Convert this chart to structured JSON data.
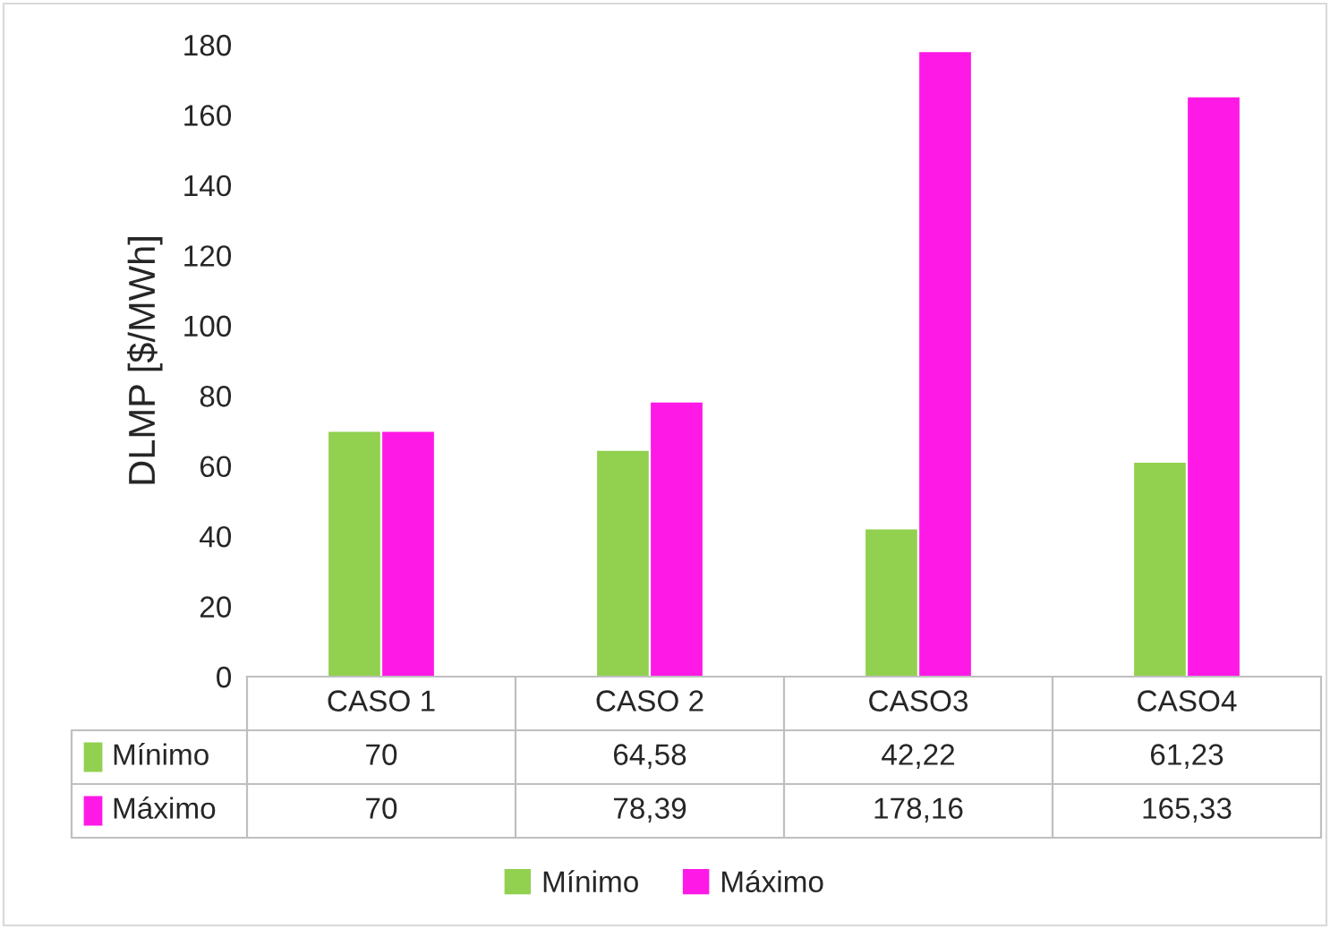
{
  "chart_data": {
    "type": "bar",
    "ylabel": "DLMP [$/MWh]",
    "categories": [
      "CASO 1",
      "CASO 2",
      "CASO3",
      "CASO4"
    ],
    "series": [
      {
        "name": "Mínimo",
        "color": "#92d050",
        "values": [
          70,
          64.58,
          42.22,
          61.23
        ],
        "value_labels": [
          "70",
          "64,58",
          "42,22",
          "61,23"
        ]
      },
      {
        "name": "Máximo",
        "color": "#ff19e6",
        "values": [
          70,
          78.39,
          178.16,
          165.33
        ],
        "value_labels": [
          "70",
          "78,39",
          "178,16",
          "165,33"
        ]
      }
    ],
    "ylim": [
      0,
      180
    ],
    "yticks": [
      0,
      20,
      40,
      60,
      80,
      100,
      120,
      140,
      160,
      180
    ],
    "grid": false,
    "legend": "bottom"
  }
}
